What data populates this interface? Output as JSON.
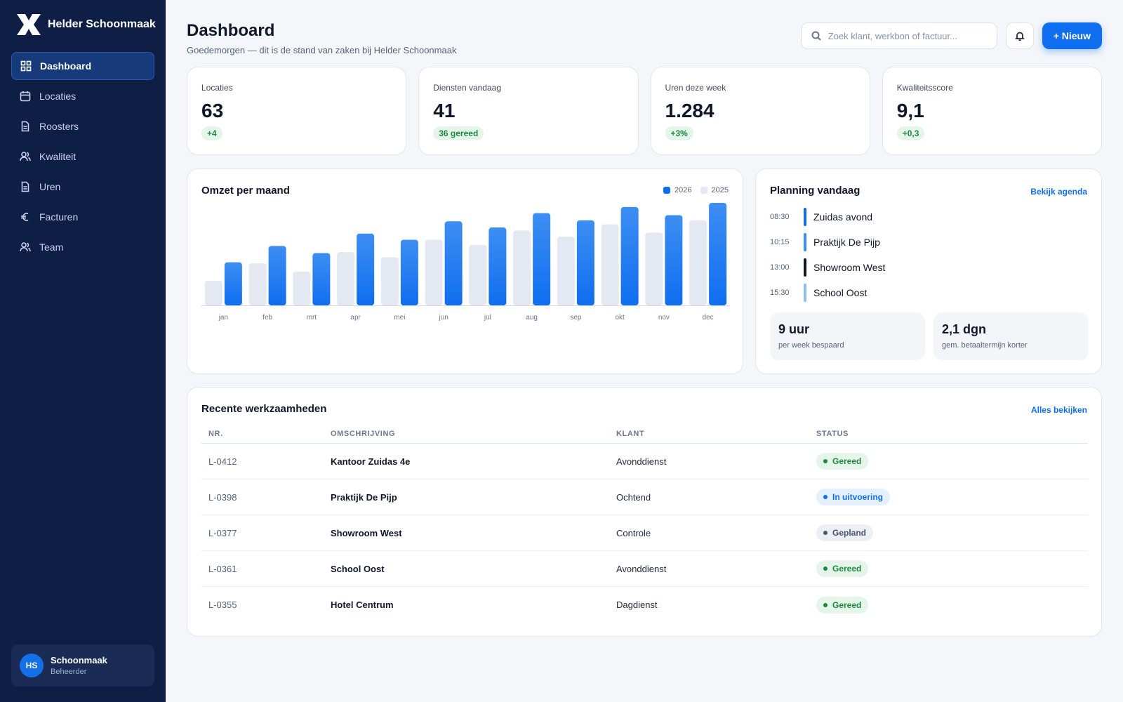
{
  "brand": {
    "name": "Helder Schoonmaak"
  },
  "sidebar": {
    "items": [
      {
        "label": "Dashboard",
        "icon": "grid-icon",
        "active": true
      },
      {
        "label": "Locaties",
        "icon": "calendar-icon",
        "active": false
      },
      {
        "label": "Roosters",
        "icon": "document-icon",
        "active": false
      },
      {
        "label": "Kwaliteit",
        "icon": "users-icon",
        "active": false
      },
      {
        "label": "Uren",
        "icon": "document-icon",
        "active": false
      },
      {
        "label": "Facturen",
        "icon": "euro-icon",
        "active": false
      },
      {
        "label": "Team",
        "icon": "users-icon",
        "active": false
      }
    ]
  },
  "user": {
    "initials": "HS",
    "name": "Schoonmaak",
    "role": "Beheerder"
  },
  "header": {
    "title": "Dashboard",
    "subtitle": "Goedemorgen — dit is de stand van zaken bij Helder Schoonmaak",
    "search_placeholder": "Zoek klant, werkbon of factuur...",
    "new_button": "+ Nieuw"
  },
  "kpis": [
    {
      "label": "Locaties",
      "value": "63",
      "badge": "+4"
    },
    {
      "label": "Diensten vandaag",
      "value": "41",
      "badge": "36 gereed"
    },
    {
      "label": "Uren deze week",
      "value": "1.284",
      "badge": "+3%"
    },
    {
      "label": "Kwaliteitsscore",
      "value": "9,1",
      "badge": "+0,3"
    }
  ],
  "chart_card": {
    "title": "Omzet per maand"
  },
  "chart_data": {
    "type": "bar",
    "title": "Omzet per maand",
    "categories": [
      "jan",
      "feb",
      "mrt",
      "apr",
      "mei",
      "jun",
      "jul",
      "aug",
      "sep",
      "okt",
      "nov",
      "dec"
    ],
    "series": [
      {
        "name": "2025",
        "color": "#e3e8f2",
        "values": [
          24,
          41,
          33,
          52,
          47,
          64,
          59,
          73,
          67,
          79,
          71,
          83
        ]
      },
      {
        "name": "2026",
        "color": "#0f6ef0",
        "values": [
          42,
          58,
          51,
          70,
          64,
          82,
          76,
          90,
          83,
          96,
          88,
          100
        ]
      }
    ],
    "ylim": [
      0,
      100
    ],
    "legend": "top-right",
    "grid": false
  },
  "planning": {
    "title": "Planning vandaag",
    "link": "Bekijk agenda",
    "items": [
      {
        "time": "08:30",
        "name": "Zuidas avond",
        "color": "#0f6ef0"
      },
      {
        "time": "10:15",
        "name": "Praktijk De Pijp",
        "color": "#3d8ef2"
      },
      {
        "time": "13:00",
        "name": "Showroom West",
        "color": "#0f172a"
      },
      {
        "time": "15:30",
        "name": "School Oost",
        "color": "#8fbdf6"
      }
    ],
    "stats": [
      {
        "value": "9 uur",
        "label": "per week bespaard"
      },
      {
        "value": "2,1 dgn",
        "label": "gem. betaaltermijn korter"
      }
    ]
  },
  "table": {
    "title": "Recente werkzaamheden",
    "link": "Alles bekijken",
    "columns": [
      "NR.",
      "OMSCHRIJVING",
      "KLANT",
      "STATUS"
    ],
    "rows": [
      {
        "nr": "L-0412",
        "desc": "Kantoor Zuidas 4e",
        "client": "Avonddienst",
        "status": "Gereed",
        "kind": "done"
      },
      {
        "nr": "L-0398",
        "desc": "Praktijk De Pijp",
        "client": "Ochtend",
        "status": "In uitvoering",
        "kind": "progress"
      },
      {
        "nr": "L-0377",
        "desc": "Showroom West",
        "client": "Controle",
        "status": "Gepland",
        "kind": "planned"
      },
      {
        "nr": "L-0361",
        "desc": "School Oost",
        "client": "Avonddienst",
        "status": "Gereed",
        "kind": "done"
      },
      {
        "nr": "L-0355",
        "desc": "Hotel Centrum",
        "client": "Dagdienst",
        "status": "Gereed",
        "kind": "done"
      }
    ],
    "status_colors": {
      "done": {
        "bg": "#e5f5ea",
        "fg": "#1b8a3f"
      },
      "progress": {
        "bg": "#e4efff",
        "fg": "#0f6ef0"
      },
      "planned": {
        "bg": "#eceff4",
        "fg": "#4a566b"
      }
    }
  }
}
